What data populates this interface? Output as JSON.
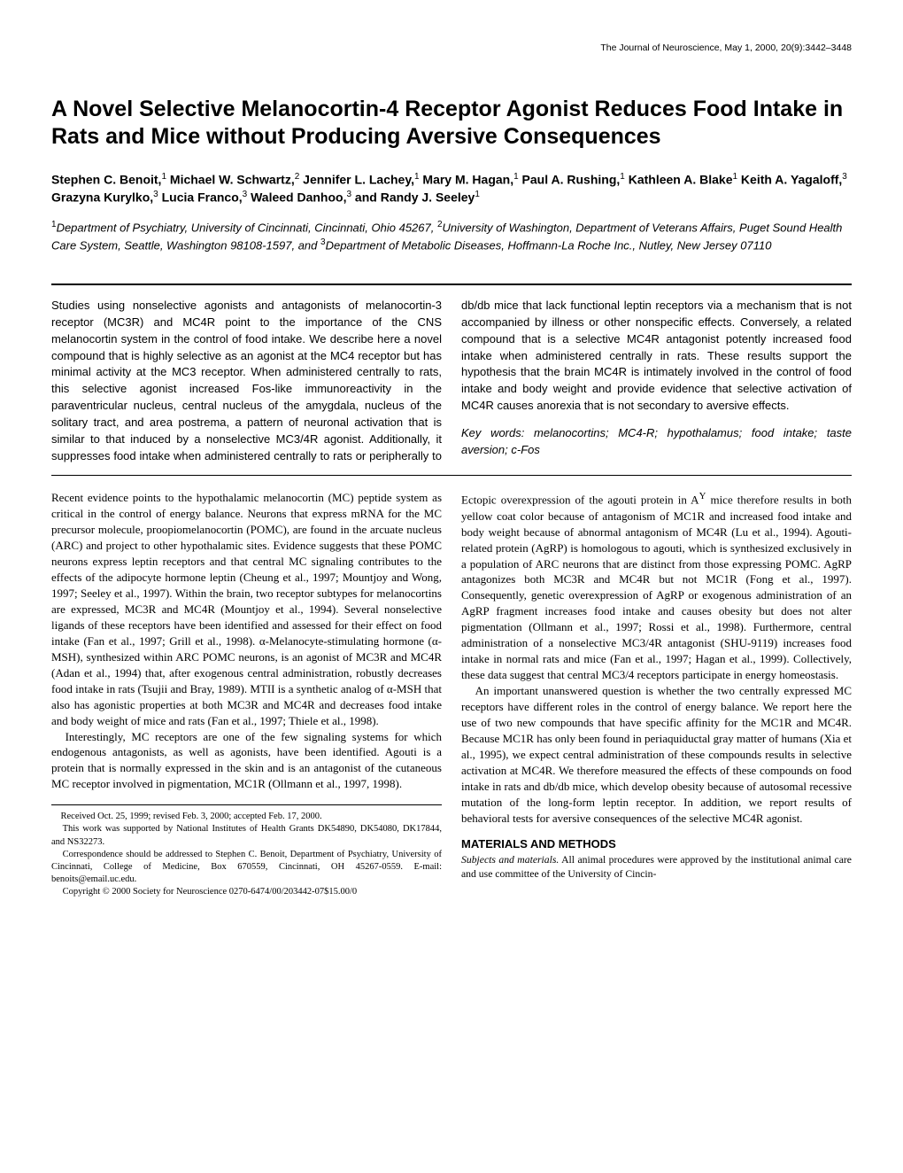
{
  "running_head": "The Journal of Neuroscience, May 1, 2000, 20(9):3442–3448",
  "title": "A Novel Selective Melanocortin-4 Receptor Agonist Reduces Food Intake in Rats and Mice without Producing Aversive Consequences",
  "authors_html": "Stephen C. Benoit,<sup>1</sup> Michael W. Schwartz,<sup>2</sup> Jennifer L. Lachey,<sup>1</sup> Mary M. Hagan,<sup>1</sup> Paul A. Rushing,<sup>1</sup> Kathleen A. Blake<sup>1</sup> Keith A. Yagaloff,<sup>3</sup> Grazyna Kurylko,<sup>3</sup> Lucia Franco,<sup>3</sup> Waleed Danhoo,<sup>3</sup> and Randy J. Seeley<sup>1</sup>",
  "affiliations_html": "<sup>1</sup>Department of Psychiatry, University of Cincinnati, Cincinnati, Ohio 45267, <sup>2</sup>University of Washington, Department of Veterans Affairs, Puget Sound Health Care System, Seattle, Washington 98108-1597, and <sup>3</sup>Department of Metabolic Diseases, Hoffmann-La Roche Inc., Nutley, New Jersey 07110",
  "abstract": {
    "text": "Studies using nonselective agonists and antagonists of melanocortin-3 receptor (MC3R) and MC4R point to the importance of the CNS melanocortin system in the control of food intake. We describe here a novel compound that is highly selective as an agonist at the MC4 receptor but has minimal activity at the MC3 receptor. When administered centrally to rats, this selective agonist increased Fos-like immunoreactivity in the paraventricular nucleus, central nucleus of the amygdala, nucleus of the solitary tract, and area postrema, a pattern of neuronal activation that is similar to that induced by a nonselective MC3/4R agonist. Additionally, it suppresses food intake when administered centrally to rats or peripherally to db/db mice that lack functional leptin receptors via a mechanism that is not accompanied by illness or other nonspecific effects. Conversely, a related compound that is a selective MC4R antagonist potently increased food intake when administered centrally in rats. These results support the hypothesis that the brain MC4R is intimately involved in the control of food intake and body weight and provide evidence that selective activation of MC4R causes anorexia that is not secondary to aversive effects.",
    "keywords": "Key words: melanocortins; MC4-R; hypothalamus; food intake; taste aversion; c-Fos"
  },
  "body": {
    "p1": "Recent evidence points to the hypothalamic melanocortin (MC) peptide system as critical in the control of energy balance. Neurons that express mRNA for the MC precursor molecule, proopiomelanocortin (POMC), are found in the arcuate nucleus (ARC) and project to other hypothalamic sites. Evidence suggests that these POMC neurons express leptin receptors and that central MC signaling contributes to the effects of the adipocyte hormone leptin (Cheung et al., 1997; Mountjoy and Wong, 1997; Seeley et al., 1997). Within the brain, two receptor subtypes for melanocortins are expressed, MC3R and MC4R (Mountjoy et al., 1994). Several nonselective ligands of these receptors have been identified and assessed for their effect on food intake (Fan et al., 1997; Grill et al., 1998). α-Melanocyte-stimulating hormone (α-MSH), synthesized within ARC POMC neurons, is an agonist of MC3R and MC4R (Adan et al., 1994) that, after exogenous central administration, robustly decreases food intake in rats (Tsujii and Bray, 1989). MTII is a synthetic analog of α-MSH that also has agonistic properties at both MC3R and MC4R and decreases food intake and body weight of mice and rats (Fan et al., 1997; Thiele et al., 1998).",
    "p2": "Interestingly, MC receptors are one of the few signaling systems for which endogenous antagonists, as well as agonists, have been identified. Agouti is a protein that is normally expressed in the skin and is an antagonist of the cutaneous MC receptor involved in pigmentation, MC1R (Ollmann et al., 1997, 1998).",
    "p3_html": "Ectopic overexpression of the agouti protein in A<sup>Y</sup> mice therefore results in both yellow coat color because of antagonism of MC1R and increased food intake and body weight because of abnormal antagonism of MC4R (Lu et al., 1994). Agouti-related protein (AgRP) is homologous to agouti, which is synthesized exclusively in a population of ARC neurons that are distinct from those expressing POMC. AgRP antagonizes both MC3R and MC4R but not MC1R (Fong et al., 1997). Consequently, genetic overexpression of AgRP or exogenous administration of an AgRP fragment increases food intake and causes obesity but does not alter pigmentation (Ollmann et al., 1997; Rossi et al., 1998). Furthermore, central administration of a nonselective MC3/4R antagonist (SHU-9119) increases food intake in normal rats and mice (Fan et al., 1997; Hagan et al., 1999). Collectively, these data suggest that central MC3/4 receptors participate in energy homeostasis.",
    "p4": "An important unanswered question is whether the two centrally expressed MC receptors have different roles in the control of energy balance. We report here the use of two new compounds that have specific affinity for the MC1R and MC4R. Because MC1R has only been found in periaquiductal gray matter of humans (Xia et al., 1995), we expect central administration of these compounds results in selective activation at MC4R. We therefore measured the effects of these compounds on food intake in rats and db/db mice, which develop obesity because of autosomal recessive mutation of the long-form leptin receptor. In addition, we report results of behavioral tests for aversive consequences of the selective MC4R agonist."
  },
  "footnotes": {
    "received": "Received Oct. 25, 1999; revised Feb. 3, 2000; accepted Feb. 17, 2000.",
    "support": "This work was supported by National Institutes of Health Grants DK54890, DK54080, DK17844, and NS32273.",
    "correspondence": "Correspondence should be addressed to Stephen C. Benoit, Department of Psychiatry, University of Cincinnati, College of Medicine, Box 670559, Cincinnati, OH 45267-0559. E-mail: benoits@email.uc.edu.",
    "copyright": "Copyright © 2000 Society for Neuroscience   0270-6474/00/203442-07$15.00/0"
  },
  "materials": {
    "heading": "MATERIALS AND METHODS",
    "runin": "Subjects and materials.",
    "text": " All animal procedures were approved by the institutional animal care and use committee of the University of Cincin-"
  }
}
